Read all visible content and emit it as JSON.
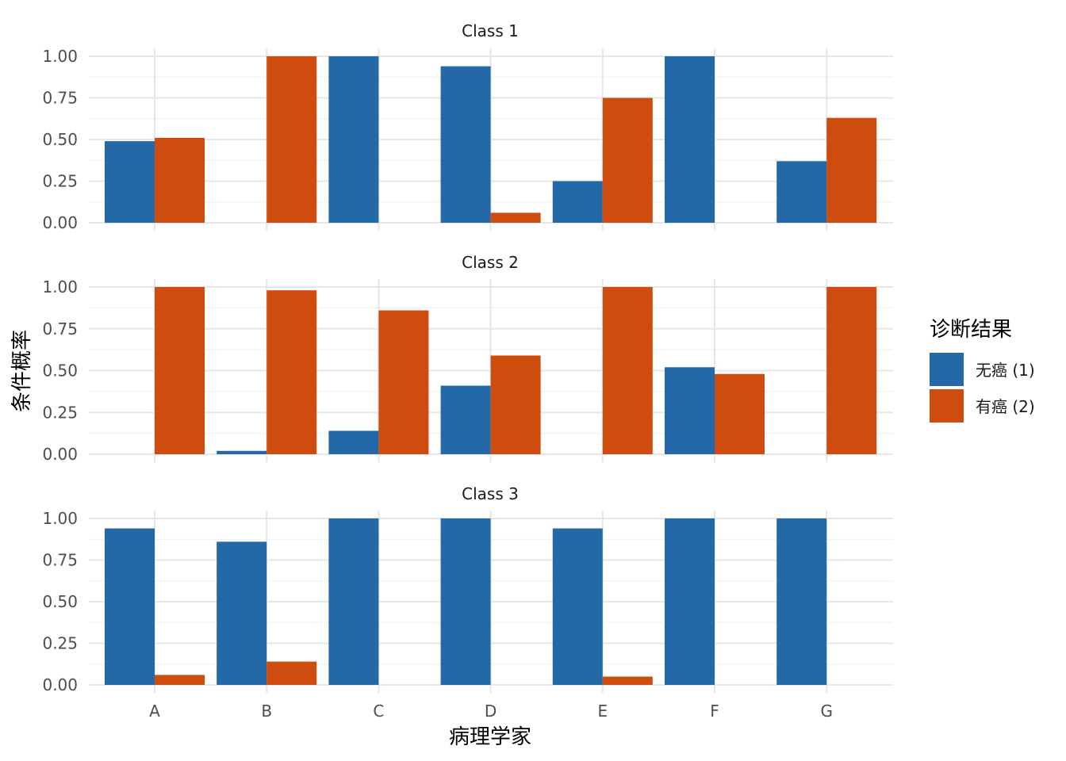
{
  "chart_data": {
    "type": "bar",
    "xlabel": "病理学家",
    "ylabel": "条件概率",
    "categories": [
      "A",
      "B",
      "C",
      "D",
      "E",
      "F",
      "G"
    ],
    "ylim": [
      0,
      1
    ],
    "yticks": [
      "0.00",
      "0.25",
      "0.50",
      "0.75",
      "1.00"
    ],
    "ytick_values": [
      0,
      0.25,
      0.5,
      0.75,
      1.0
    ],
    "grid": true,
    "legend": {
      "title": "诊断结果",
      "position": "right",
      "entries": [
        {
          "label": "无癌 (1)",
          "color": "#2369A8"
        },
        {
          "label": "有癌 (2)",
          "color": "#CF4C0F"
        }
      ]
    },
    "panels": [
      {
        "title": "Class 1",
        "series": [
          {
            "name": "无癌 (1)",
            "values": [
              0.49,
              0.0,
              1.0,
              0.94,
              0.25,
              1.0,
              0.37
            ]
          },
          {
            "name": "有癌 (2)",
            "values": [
              0.51,
              1.0,
              0.0,
              0.06,
              0.75,
              0.0,
              0.63
            ]
          }
        ]
      },
      {
        "title": "Class 2",
        "series": [
          {
            "name": "无癌 (1)",
            "values": [
              0.0,
              0.02,
              0.14,
              0.41,
              0.0,
              0.52,
              0.0
            ]
          },
          {
            "name": "有癌 (2)",
            "values": [
              1.0,
              0.98,
              0.86,
              0.59,
              1.0,
              0.48,
              1.0
            ]
          }
        ]
      },
      {
        "title": "Class 3",
        "series": [
          {
            "name": "无癌 (1)",
            "values": [
              0.94,
              0.86,
              1.0,
              1.0,
              0.94,
              1.0,
              1.0
            ]
          },
          {
            "name": "有癌 (2)",
            "values": [
              0.06,
              0.14,
              0.0,
              0.0,
              0.05,
              0.0,
              0.0
            ]
          }
        ]
      }
    ]
  }
}
